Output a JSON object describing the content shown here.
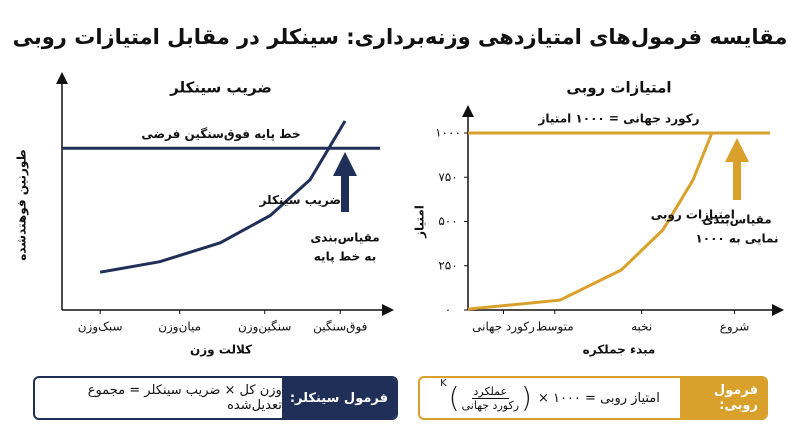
{
  "title": "مقایسه فرمول‌های امتیازدهی وزنه‌برداری: سینکلر در مقابل امتیازات روبی",
  "chart_data": [
    {
      "type": "line",
      "title": "ضریب سینکلر",
      "xlabel": "کلالت وزن",
      "ylabel": "طورنین فوهتدشده",
      "xlim": [
        0,
        4
      ],
      "ylim": [
        0,
        1
      ],
      "xticks": [
        {
          "value": 0.48,
          "label": "سبک‌وزن"
        },
        {
          "value": 1.48,
          "label": "میان‌وزن"
        },
        {
          "value": 2.55,
          "label": "سنگین‌وزن"
        },
        {
          "value": 3.5,
          "label": "فوق‌سنگین"
        }
      ],
      "x": [
        0.48,
        1.23,
        1.99,
        2.62,
        3.12,
        3.56
      ],
      "series": [
        {
          "name": "ضریب سینکلر",
          "color": "#1f2f57",
          "values": [
            0.18,
            0.23,
            0.32,
            0.45,
            0.62,
            0.9
          ]
        }
      ],
      "reference_line": {
        "value": 0.77,
        "label": "خط پایه فوق‌سنگین فرضی",
        "color": "#1f2f57"
      },
      "annotation": {
        "lines": [
          "مقیاس‌بندی",
          "به خط پایه"
        ],
        "color": "#1f2f57"
      }
    },
    {
      "type": "line",
      "title": "امتیازات روبی",
      "xlabel": "مبدء جملکره",
      "ylabel": "امتیاز",
      "xlim": [
        0,
        4
      ],
      "ylim": [
        0,
        1000
      ],
      "xticks": [
        {
          "value": 0.47,
          "label": "رکورد جهانی"
        },
        {
          "value": 1.15,
          "label": "متوسط"
        },
        {
          "value": 2.3,
          "label": "نخبه"
        },
        {
          "value": 3.53,
          "label": "شروع"
        }
      ],
      "yticks": [
        {
          "value": 0,
          "label": "۰"
        },
        {
          "value": 250,
          "label": "۲۵۰"
        },
        {
          "value": 500,
          "label": "۵۰۰"
        },
        {
          "value": 750,
          "label": "۷۵۰"
        },
        {
          "value": 1000,
          "label": "۱۰۰۰"
        }
      ],
      "x": [
        0,
        1.22,
        2.03,
        2.58,
        2.98,
        3.23
      ],
      "series": [
        {
          "name": "امتیازات روبی",
          "color": "#d9a12b",
          "values": [
            5,
            56,
            226,
            452,
            734,
            1000
          ]
        }
      ],
      "reference_line": {
        "value": 1000,
        "label": "رکورد جهانی = ۱۰۰۰ امتیاز",
        "color": "#d9a12b"
      },
      "annotation": {
        "lines": [
          "مقیاس‌بندی",
          "نمایی به ۱۰۰۰"
        ],
        "color": "#d9a12b"
      }
    }
  ],
  "formulas": {
    "sinclair": {
      "label": "فرمول سینکلر:",
      "text": "وزن کل × ضریب سینکلر = مجموع تعدیل‌شده"
    },
    "robi": {
      "label": "فرمول روبی:",
      "lhs": "امتیاز روبی = ۱۰۰۰ ×",
      "numerator": "عملکرد",
      "denominator": "رکورد جهانی",
      "exponent": "K"
    }
  }
}
